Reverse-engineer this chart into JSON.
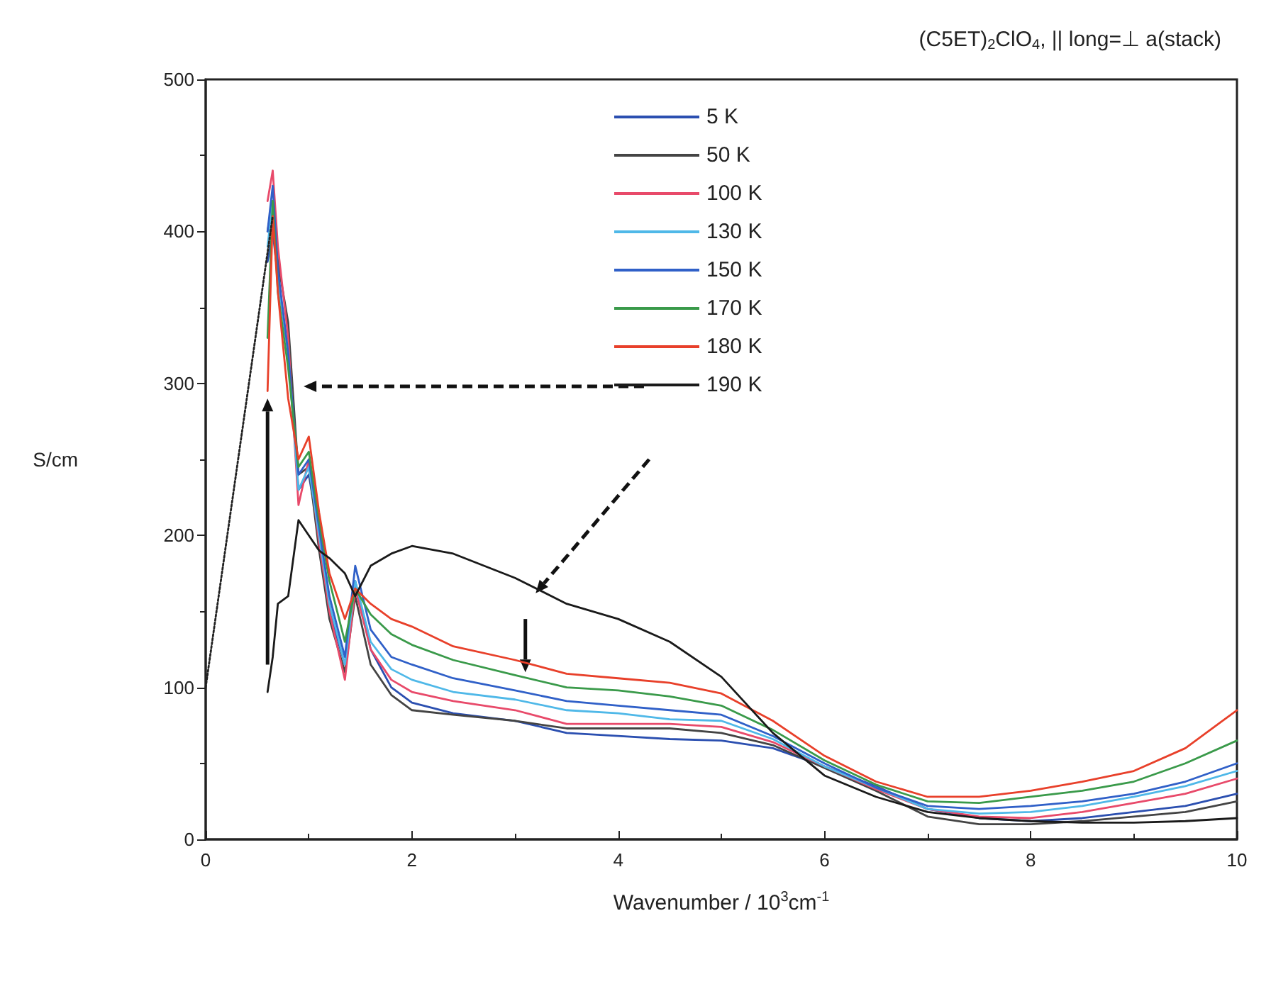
{
  "chart_data": {
    "type": "line",
    "title": "(C5ET)$_{2}$ClO$_{4}$, || long=⊥ a(stack)",
    "xlabel": "Wavenumber / 10$^{3}$cm$^{-1}$",
    "ylabel": "S/cm",
    "x": [
      0.6,
      0.65,
      0.7,
      0.8,
      0.9,
      1.0,
      1.1,
      1.2,
      1.35,
      1.45,
      1.6,
      1.8,
      2.0,
      2.4,
      3.0,
      3.5,
      4.0,
      4.5,
      5.0,
      5.5,
      6.0,
      6.5,
      7.0,
      7.5,
      8.0,
      8.5,
      9.0,
      9.5,
      10.0
    ],
    "series": [
      {
        "name": "5 K",
        "color": "#2b4fb0",
        "values": [
          380,
          400,
          370,
          320,
          230,
          240,
          200,
          150,
          115,
          170,
          125,
          100,
          90,
          83,
          78,
          70,
          68,
          66,
          65,
          60,
          48,
          35,
          20,
          14,
          12,
          14,
          18,
          22,
          30
        ]
      },
      {
        "name": "50 K",
        "color": "#444444",
        "values": [
          400,
          420,
          380,
          340,
          240,
          245,
          190,
          145,
          110,
          160,
          115,
          95,
          85,
          82,
          78,
          73,
          73,
          73,
          70,
          62,
          47,
          32,
          15,
          10,
          10,
          12,
          15,
          18,
          25
        ]
      },
      {
        "name": "100 K",
        "color": "#e84a6a",
        "values": [
          420,
          440,
          390,
          330,
          220,
          250,
          195,
          150,
          105,
          165,
          125,
          105,
          97,
          91,
          85,
          76,
          76,
          76,
          74,
          64,
          48,
          33,
          20,
          15,
          14,
          18,
          24,
          30,
          40
        ]
      },
      {
        "name": "130 K",
        "color": "#4fb8e8",
        "values": [
          390,
          420,
          370,
          320,
          230,
          245,
          200,
          155,
          115,
          170,
          130,
          112,
          105,
          97,
          92,
          85,
          83,
          79,
          78,
          66,
          48,
          34,
          20,
          17,
          18,
          22,
          28,
          35,
          45
        ]
      },
      {
        "name": "150 K",
        "color": "#3060c8",
        "values": [
          400,
          430,
          375,
          320,
          240,
          250,
          205,
          160,
          120,
          180,
          138,
          120,
          115,
          106,
          98,
          91,
          88,
          85,
          82,
          68,
          50,
          34,
          22,
          20,
          22,
          25,
          30,
          38,
          50
        ]
      },
      {
        "name": "170 K",
        "color": "#3a9a4a",
        "values": [
          330,
          420,
          360,
          310,
          245,
          255,
          210,
          170,
          130,
          165,
          148,
          135,
          128,
          118,
          108,
          100,
          98,
          94,
          88,
          72,
          52,
          36,
          25,
          24,
          28,
          32,
          38,
          50,
          65
        ]
      },
      {
        "name": "180 K",
        "color": "#e8402a",
        "values": [
          295,
          410,
          360,
          290,
          250,
          265,
          215,
          175,
          145,
          165,
          155,
          145,
          140,
          127,
          118,
          109,
          106,
          103,
          96,
          78,
          55,
          38,
          28,
          28,
          32,
          38,
          45,
          60,
          85
        ]
      },
      {
        "name": "190 K",
        "color": "#1a1a1a",
        "values": [
          97,
          120,
          155,
          160,
          210,
          200,
          190,
          185,
          175,
          160,
          180,
          188,
          193,
          188,
          172,
          155,
          145,
          130,
          107,
          70,
          42,
          28,
          18,
          14,
          12,
          11,
          11,
          12,
          14
        ]
      },
      {
        "color": "#222222",
        "line_style": "dotted",
        "x": [
          0,
          0.65
        ],
        "values": [
          100,
          410
        ]
      }
    ],
    "xlim": [
      0,
      10
    ],
    "xticks": [
      0,
      2,
      4,
      6,
      8,
      10
    ],
    "ylim": [
      0,
      500
    ],
    "yticks": [
      0,
      100,
      200,
      300,
      400,
      500
    ],
    "grid": false,
    "legend": "top right",
    "line_style": "solid",
    "marker": "none"
  }
}
